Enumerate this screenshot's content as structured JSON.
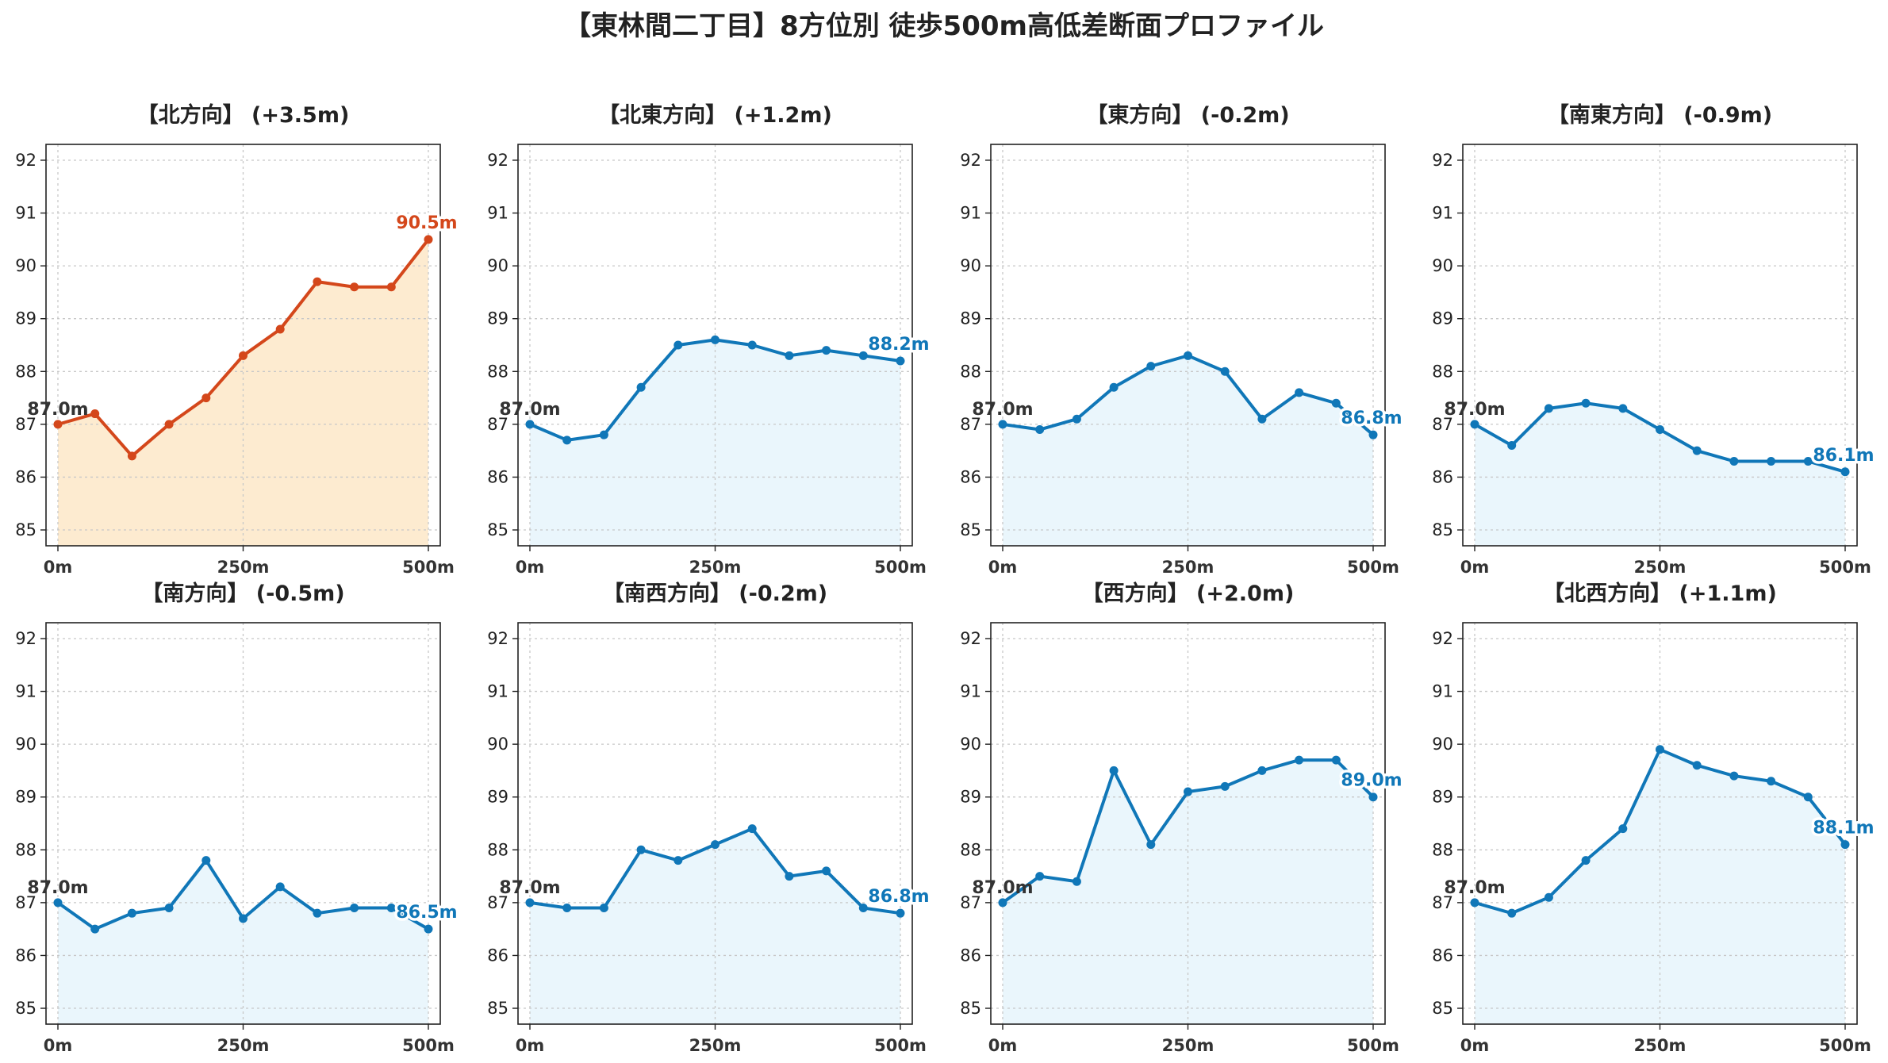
{
  "colors": {
    "up": "#d4471b",
    "up_fill": "#fdebd0",
    "normal": "#1077b8",
    "normal_fill": "#eaf6fc",
    "start_label": "#333333"
  },
  "chart_data": [
    {
      "type": "area",
      "title": "【東林間二丁目】8方位別 徒歩500m高低差断面プロファイル"
    },
    {
      "type": "line",
      "title": "【北方向】 (+3.5m)",
      "ylim": [
        84.7,
        92.3
      ],
      "yticks": [
        85,
        86,
        87,
        88,
        89,
        90,
        91,
        92
      ],
      "xticks": [
        0,
        250,
        500
      ],
      "xticklabels": [
        "0m",
        "250m",
        "500m"
      ],
      "x": [
        0,
        50,
        100,
        150,
        200,
        250,
        300,
        350,
        400,
        450,
        500
      ],
      "y": [
        87.0,
        87.2,
        86.4,
        87.0,
        87.5,
        88.3,
        88.8,
        89.7,
        89.6,
        89.6,
        90.5
      ],
      "start_label": "87.0m",
      "end_label": "90.5m",
      "highlight": true,
      "grid": true
    },
    {
      "type": "line",
      "title": "【北東方向】 (+1.2m)",
      "ylim": [
        84.7,
        92.3
      ],
      "yticks": [
        85,
        86,
        87,
        88,
        89,
        90,
        91,
        92
      ],
      "xticks": [
        0,
        250,
        500
      ],
      "xticklabels": [
        "0m",
        "250m",
        "500m"
      ],
      "x": [
        0,
        50,
        100,
        150,
        200,
        250,
        300,
        350,
        400,
        450,
        500
      ],
      "y": [
        87.0,
        86.7,
        86.8,
        87.7,
        88.5,
        88.6,
        88.5,
        88.3,
        88.4,
        88.3,
        88.2
      ],
      "start_label": "87.0m",
      "end_label": "88.2m",
      "highlight": false,
      "grid": true
    },
    {
      "type": "line",
      "title": "【東方向】 (-0.2m)",
      "ylim": [
        84.7,
        92.3
      ],
      "yticks": [
        85,
        86,
        87,
        88,
        89,
        90,
        91,
        92
      ],
      "xticks": [
        0,
        250,
        500
      ],
      "xticklabels": [
        "0m",
        "250m",
        "500m"
      ],
      "x": [
        0,
        50,
        100,
        150,
        200,
        250,
        300,
        350,
        400,
        450,
        500
      ],
      "y": [
        87.0,
        86.9,
        87.1,
        87.7,
        88.1,
        88.3,
        88.0,
        87.1,
        87.6,
        87.4,
        86.8
      ],
      "start_label": "87.0m",
      "end_label": "86.8m",
      "highlight": false,
      "grid": true
    },
    {
      "type": "line",
      "title": "【南東方向】 (-0.9m)",
      "ylim": [
        84.7,
        92.3
      ],
      "yticks": [
        85,
        86,
        87,
        88,
        89,
        90,
        91,
        92
      ],
      "xticks": [
        0,
        250,
        500
      ],
      "xticklabels": [
        "0m",
        "250m",
        "500m"
      ],
      "x": [
        0,
        50,
        100,
        150,
        200,
        250,
        300,
        350,
        400,
        450,
        500
      ],
      "y": [
        87.0,
        86.6,
        87.3,
        87.4,
        87.3,
        86.9,
        86.5,
        86.3,
        86.3,
        86.3,
        86.1
      ],
      "start_label": "87.0m",
      "end_label": "86.1m",
      "highlight": false,
      "grid": true
    },
    {
      "type": "line",
      "title": "【南方向】 (-0.5m)",
      "ylim": [
        84.7,
        92.3
      ],
      "yticks": [
        85,
        86,
        87,
        88,
        89,
        90,
        91,
        92
      ],
      "xticks": [
        0,
        250,
        500
      ],
      "xticklabels": [
        "0m",
        "250m",
        "500m"
      ],
      "x": [
        0,
        50,
        100,
        150,
        200,
        250,
        300,
        350,
        400,
        450,
        500
      ],
      "y": [
        87.0,
        86.5,
        86.8,
        86.9,
        87.8,
        86.7,
        87.3,
        86.8,
        86.9,
        86.9,
        86.5
      ],
      "start_label": "87.0m",
      "end_label": "86.5m",
      "highlight": false,
      "grid": true
    },
    {
      "type": "line",
      "title": "【南西方向】 (-0.2m)",
      "ylim": [
        84.7,
        92.3
      ],
      "yticks": [
        85,
        86,
        87,
        88,
        89,
        90,
        91,
        92
      ],
      "xticks": [
        0,
        250,
        500
      ],
      "xticklabels": [
        "0m",
        "250m",
        "500m"
      ],
      "x": [
        0,
        50,
        100,
        150,
        200,
        250,
        300,
        350,
        400,
        450,
        500
      ],
      "y": [
        87.0,
        86.9,
        86.9,
        88.0,
        87.8,
        88.1,
        88.4,
        87.5,
        87.6,
        86.9,
        86.8
      ],
      "start_label": "87.0m",
      "end_label": "86.8m",
      "highlight": false,
      "grid": true
    },
    {
      "type": "line",
      "title": "【西方向】 (+2.0m)",
      "ylim": [
        84.7,
        92.3
      ],
      "yticks": [
        85,
        86,
        87,
        88,
        89,
        90,
        91,
        92
      ],
      "xticks": [
        0,
        250,
        500
      ],
      "xticklabels": [
        "0m",
        "250m",
        "500m"
      ],
      "x": [
        0,
        50,
        100,
        150,
        200,
        250,
        300,
        350,
        400,
        450,
        500
      ],
      "y": [
        87.0,
        87.5,
        87.4,
        89.5,
        88.1,
        89.1,
        89.2,
        89.5,
        89.7,
        89.7,
        89.0
      ],
      "start_label": "87.0m",
      "end_label": "89.0m",
      "highlight": false,
      "grid": true
    },
    {
      "type": "line",
      "title": "【北西方向】 (+1.1m)",
      "ylim": [
        84.7,
        92.3
      ],
      "yticks": [
        85,
        86,
        87,
        88,
        89,
        90,
        91,
        92
      ],
      "xticks": [
        0,
        250,
        500
      ],
      "xticklabels": [
        "0m",
        "250m",
        "500m"
      ],
      "x": [
        0,
        50,
        100,
        150,
        200,
        250,
        300,
        350,
        400,
        450,
        500
      ],
      "y": [
        87.0,
        86.8,
        87.1,
        87.8,
        88.4,
        89.9,
        89.6,
        89.4,
        89.3,
        89.0,
        88.1
      ],
      "start_label": "87.0m",
      "end_label": "88.1m",
      "highlight": false,
      "grid": true
    }
  ]
}
